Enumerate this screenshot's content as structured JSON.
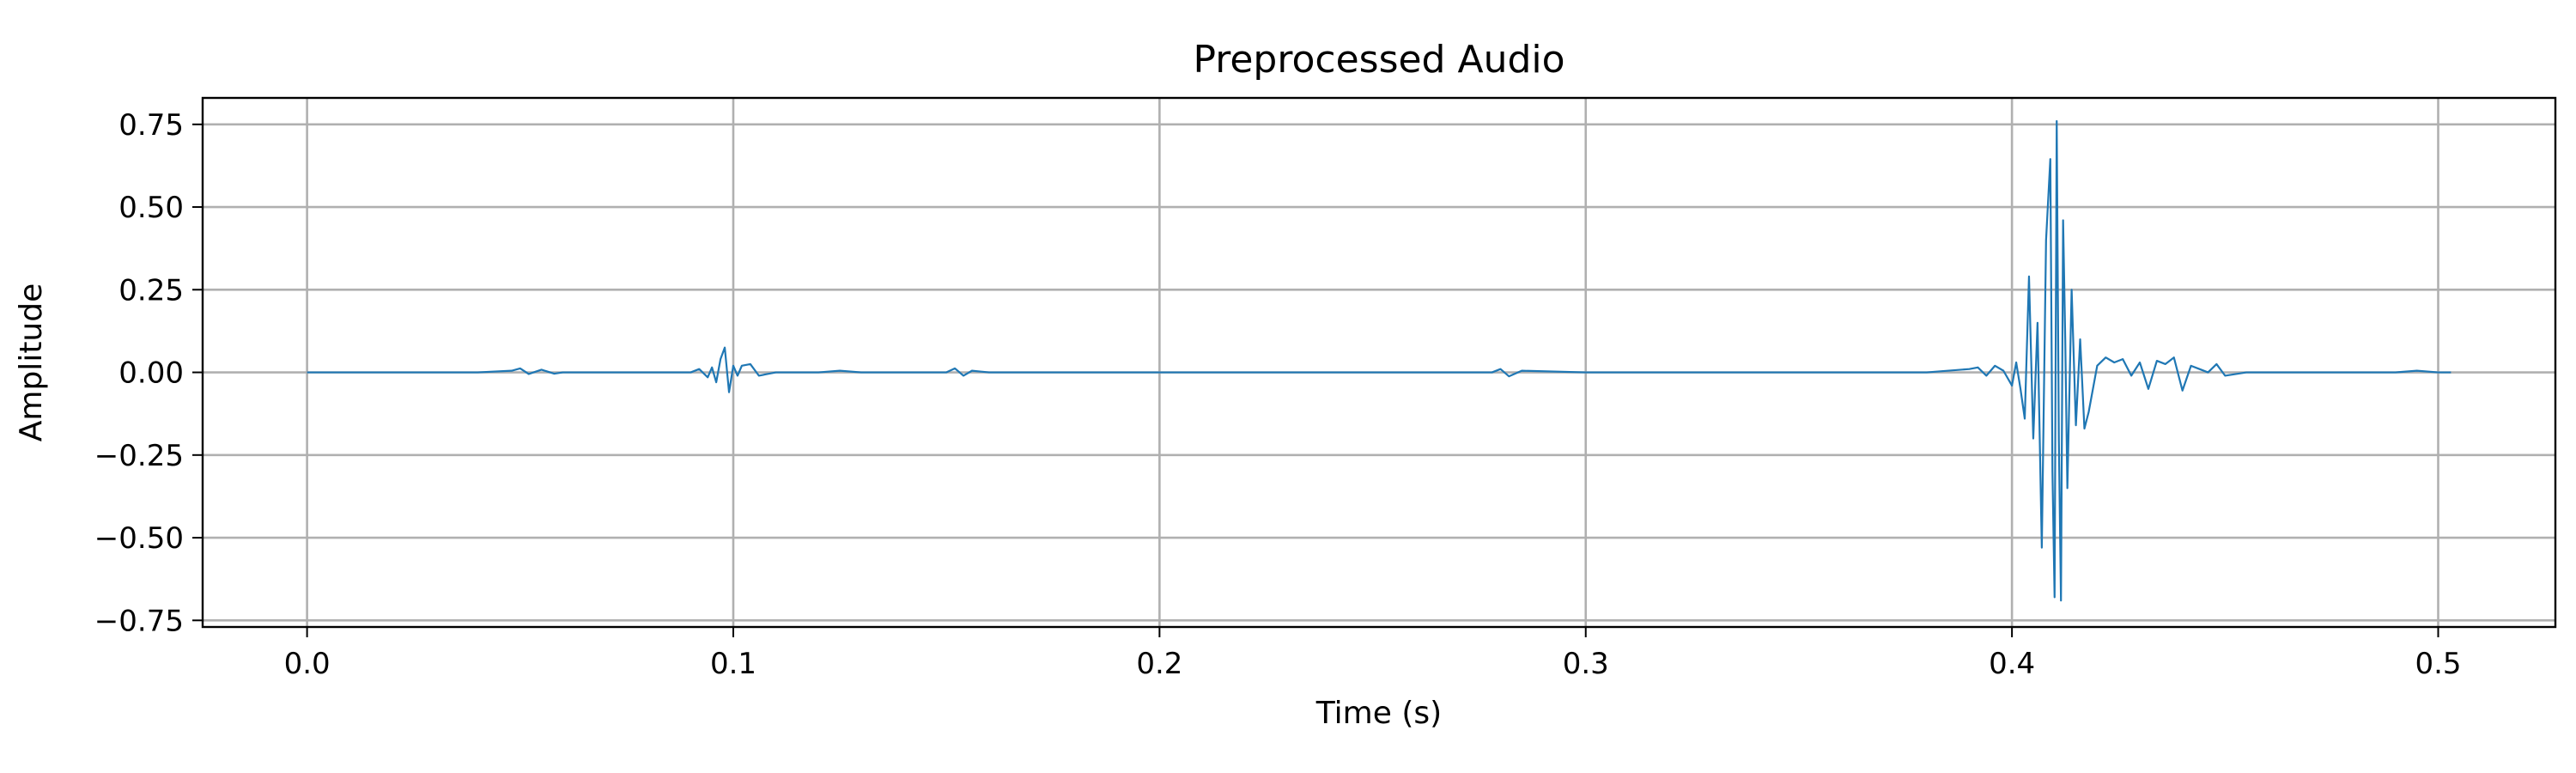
{
  "chart_data": {
    "type": "line",
    "title": "Preprocessed Audio",
    "xlabel": "Time (s)",
    "ylabel": "Amplitude",
    "xlim": [
      -0.0245,
      0.5275
    ],
    "ylim": [
      -0.77,
      0.83
    ],
    "xticks": [
      0.0,
      0.1,
      0.2,
      0.3,
      0.4,
      0.5
    ],
    "xtick_labels": [
      "0.0",
      "0.1",
      "0.2",
      "0.3",
      "0.4",
      "0.5"
    ],
    "yticks": [
      -0.75,
      -0.5,
      -0.25,
      0.0,
      0.25,
      0.5,
      0.75
    ],
    "ytick_labels": [
      "−0.75",
      "−0.50",
      "−0.25",
      "0.00",
      "0.25",
      "0.50",
      "0.75"
    ],
    "grid": true,
    "colors": {
      "line": "#1f77b4",
      "grid": "#b0b0b0"
    },
    "series": [
      {
        "x": [
          0.0,
          0.02,
          0.04,
          0.048,
          0.05,
          0.052,
          0.055,
          0.058,
          0.06,
          0.08,
          0.09,
          0.092,
          0.094,
          0.095,
          0.096,
          0.097,
          0.098,
          0.099,
          0.1,
          0.101,
          0.102,
          0.104,
          0.106,
          0.108,
          0.11,
          0.12,
          0.125,
          0.13,
          0.14,
          0.15,
          0.152,
          0.154,
          0.156,
          0.16,
          0.18,
          0.2,
          0.22,
          0.24,
          0.26,
          0.278,
          0.28,
          0.282,
          0.285,
          0.3,
          0.32,
          0.34,
          0.36,
          0.38,
          0.39,
          0.392,
          0.394,
          0.396,
          0.398,
          0.4,
          0.401,
          0.402,
          0.403,
          0.404,
          0.405,
          0.406,
          0.407,
          0.408,
          0.409,
          0.4095,
          0.41,
          0.4105,
          0.411,
          0.4115,
          0.412,
          0.4125,
          0.413,
          0.414,
          0.415,
          0.416,
          0.417,
          0.418,
          0.42,
          0.422,
          0.424,
          0.426,
          0.428,
          0.43,
          0.432,
          0.434,
          0.436,
          0.438,
          0.44,
          0.442,
          0.444,
          0.446,
          0.448,
          0.45,
          0.455,
          0.46,
          0.47,
          0.48,
          0.49,
          0.495,
          0.5,
          0.503
        ],
        "y": [
          0.0,
          0.0,
          0.0,
          0.005,
          0.012,
          -0.005,
          0.008,
          -0.004,
          0.0,
          0.0,
          0.0,
          0.01,
          -0.015,
          0.015,
          -0.03,
          0.04,
          0.075,
          -0.06,
          0.02,
          -0.01,
          0.02,
          0.025,
          -0.01,
          -0.005,
          0.0,
          0.0,
          0.005,
          0.0,
          0.0,
          0.0,
          0.012,
          -0.01,
          0.005,
          0.0,
          0.0,
          0.0,
          0.0,
          0.0,
          0.0,
          0.0,
          0.01,
          -0.012,
          0.005,
          0.0,
          0.0,
          0.0,
          0.0,
          0.0,
          0.01,
          0.015,
          -0.01,
          0.02,
          0.005,
          -0.04,
          0.03,
          -0.05,
          -0.14,
          0.29,
          -0.2,
          0.15,
          -0.53,
          0.4,
          0.645,
          -0.3,
          -0.68,
          0.76,
          -0.2,
          -0.69,
          0.46,
          0.1,
          -0.35,
          0.25,
          -0.16,
          0.1,
          -0.17,
          -0.12,
          0.02,
          0.045,
          0.03,
          0.04,
          -0.01,
          0.03,
          -0.05,
          0.035,
          0.025,
          0.045,
          -0.055,
          0.02,
          0.01,
          0.0,
          0.025,
          -0.01,
          0.0,
          0.0,
          0.0,
          0.0,
          0.0,
          0.005,
          0.0,
          0.0
        ]
      }
    ]
  }
}
